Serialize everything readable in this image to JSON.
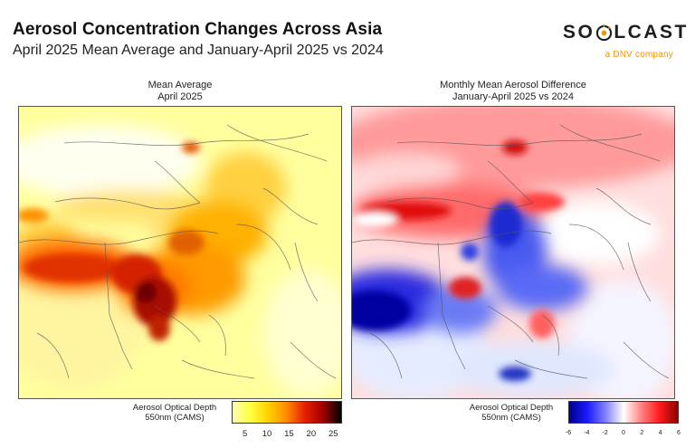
{
  "header": {
    "title": "Aerosol Concentration Changes Across Asia",
    "subtitle": "April 2025 Mean Average and January-April 2025 vs 2024"
  },
  "logo": {
    "wordmark": "SOLCAST",
    "wordmark_left": "SO",
    "wordmark_right": "LCAST",
    "tagline": "a DNV company",
    "accent_color": "#f29300"
  },
  "left_panel": {
    "title_line1": "Mean Average",
    "title_line2": "April 2025",
    "colorbar": {
      "label_line1": "Aerosol Optical Depth",
      "label_line2": "550nm (CAMS)",
      "ticks": [
        "5",
        "10",
        "15",
        "20",
        "25"
      ],
      "range": [
        2,
        27
      ],
      "colors": [
        "#ffffb2",
        "#ffff40",
        "#ffd000",
        "#ff8a00",
        "#e51f00",
        "#a00000",
        "#000000"
      ]
    }
  },
  "right_panel": {
    "title_line1": "Monthly Mean Aerosol Difference",
    "title_line2": "January-April 2025 vs 2024",
    "colorbar": {
      "label_line1": "Aerosol Optical Depth",
      "label_line2": "550nm (CAMS)",
      "ticks": [
        "-6",
        "-4",
        "-2",
        "0",
        "2",
        "4",
        "6"
      ],
      "range": [
        -6,
        6
      ],
      "colors": [
        "#00008b",
        "#1a1aff",
        "#8080ff",
        "#ffffff",
        "#ff8080",
        "#ff1a1a",
        "#8b0000"
      ]
    }
  }
}
